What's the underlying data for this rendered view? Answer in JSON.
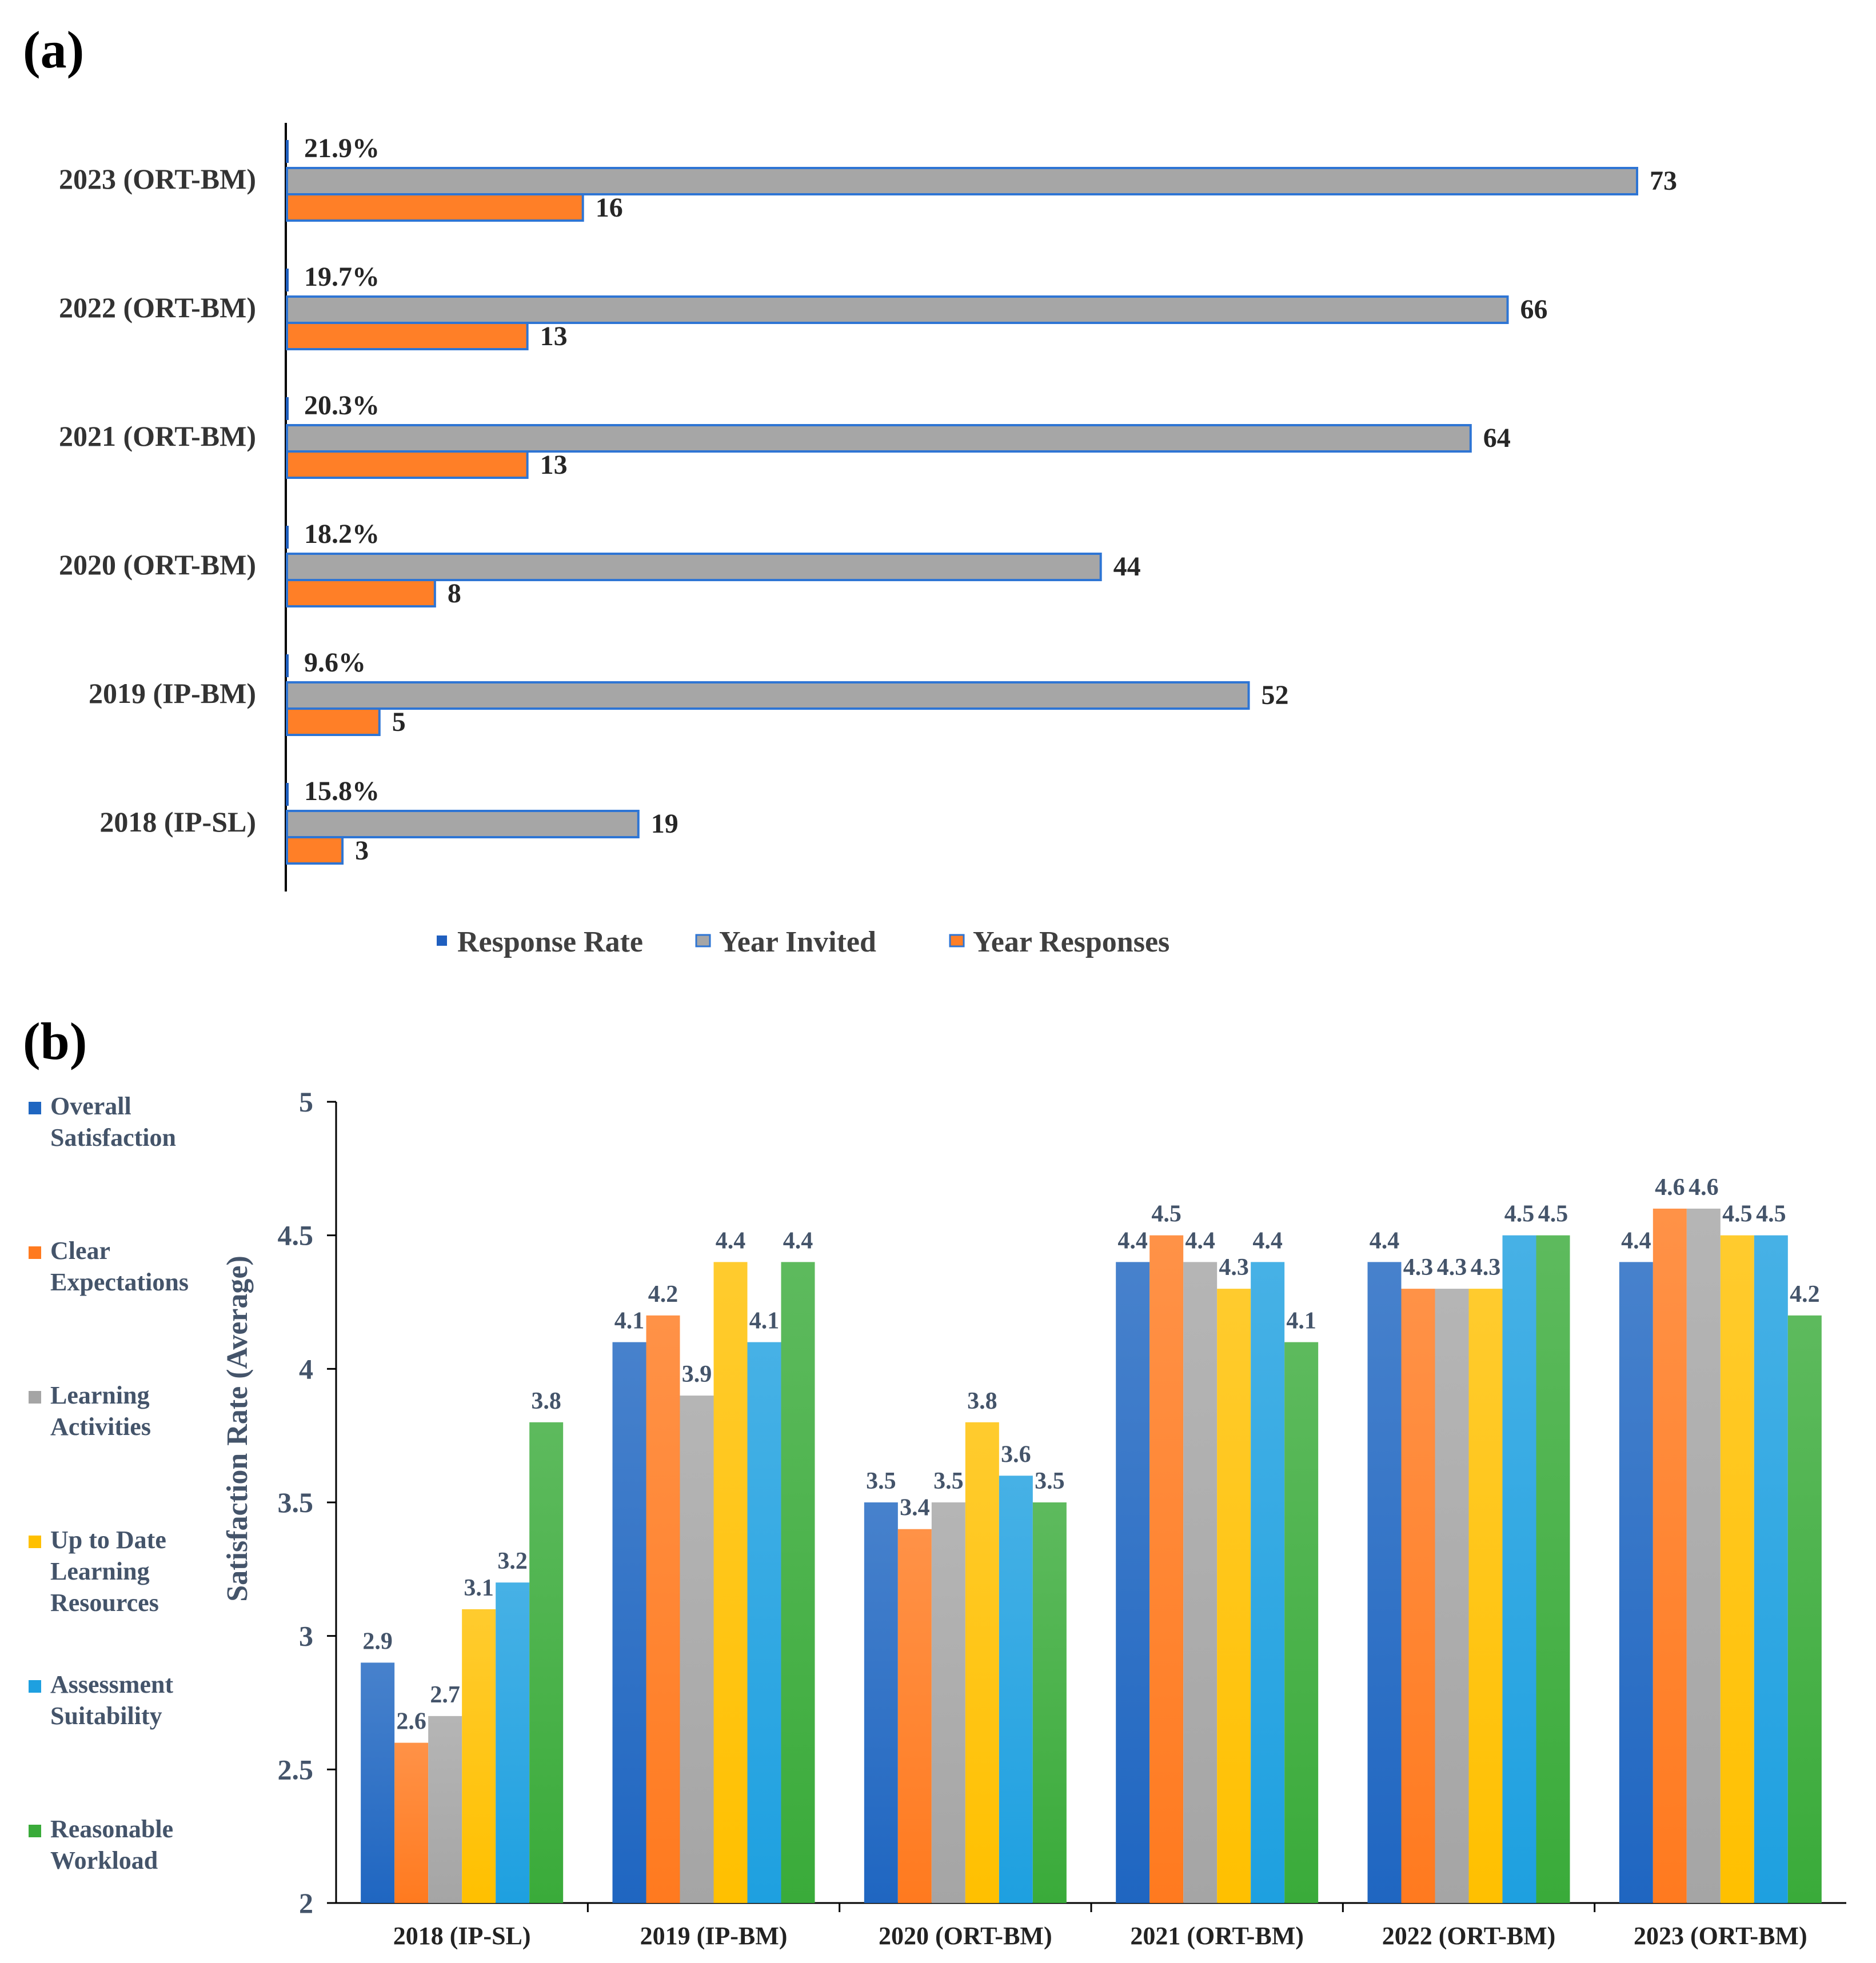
{
  "chart_data": [
    {
      "panel": "(a)",
      "type": "bar",
      "orientation": "horizontal",
      "categories": [
        "2023 (ORT-BM)",
        "2022 (ORT-BM)",
        "2021 (ORT-BM)",
        "2020 (ORT-BM)",
        "2019 (IP-BM)",
        "2018 (IP-SL)"
      ],
      "series": [
        {
          "name": "Response Rate",
          "values": [
            21.9,
            19.7,
            20.3,
            18.2,
            9.6,
            15.8
          ],
          "labels": [
            "21.9%",
            "19.7%",
            "20.3%",
            "18.2%",
            "9.6%",
            "15.8%"
          ],
          "color": "#1f5fbf"
        },
        {
          "name": "Year Invited",
          "values": [
            73,
            66,
            64,
            44,
            52,
            19
          ],
          "labels": [
            "73",
            "66",
            "64",
            "44",
            "52",
            "19"
          ],
          "color": "#a6a6a6",
          "stroke": "#2e75d4"
        },
        {
          "name": "Year Responses",
          "values": [
            16,
            13,
            13,
            8,
            5,
            3
          ],
          "labels": [
            "16",
            "13",
            "13",
            "8",
            "5",
            "3"
          ],
          "color": "#ff7f27",
          "stroke": "#2e75d4"
        }
      ],
      "xlim": [
        0,
        80
      ],
      "legend_position": "bottom"
    },
    {
      "panel": "(b)",
      "type": "bar",
      "categories": [
        "2018 (IP-SL)",
        "2019 (IP-BM)",
        "2020 (ORT-BM)",
        "2021 (ORT-BM)",
        "2022 (ORT-BM)",
        "2023 (ORT-BM)"
      ],
      "series": [
        {
          "name": "Overall Satisfaction",
          "legend_lines": [
            "Overall",
            "Satisfaction"
          ],
          "values": [
            2.9,
            4.1,
            3.5,
            4.4,
            4.4,
            4.4
          ],
          "labels": [
            "2.9",
            "4.1",
            "3.5",
            "4.4",
            "4.4",
            "4.4"
          ],
          "color": "#1f66c1"
        },
        {
          "name": "Clear Expectations",
          "legend_lines": [
            "Clear",
            "Expectations"
          ],
          "values": [
            2.6,
            4.2,
            3.4,
            4.5,
            4.3,
            4.6
          ],
          "labels": [
            "2.6",
            "4.2",
            "3.4",
            "4.5",
            "4.3",
            "4.6"
          ],
          "color": "#ff7a1f"
        },
        {
          "name": "Learning Activities",
          "legend_lines": [
            "Learning",
            "Activities"
          ],
          "values": [
            2.7,
            3.9,
            3.5,
            4.4,
            4.3,
            4.6
          ],
          "labels": [
            "2.7",
            "3.9",
            "3.5",
            "4.4",
            "4.3",
            "4.6"
          ],
          "color": "#a5a5a5"
        },
        {
          "name": "Up to Date Learning Resources",
          "legend_lines": [
            "Up to Date",
            "Learning",
            "Resources"
          ],
          "values": [
            3.1,
            4.4,
            3.8,
            4.3,
            4.3,
            4.5
          ],
          "labels": [
            "3.1",
            "4.4",
            "3.8",
            "4.3",
            "4.3",
            "4.5"
          ],
          "color": "#ffc000"
        },
        {
          "name": "Assessment Suitability",
          "legend_lines": [
            "Assessment",
            "Suitability"
          ],
          "values": [
            3.2,
            4.1,
            3.6,
            4.4,
            4.5,
            4.5
          ],
          "labels": [
            "3.2",
            "4.1",
            "3.6",
            "4.4",
            "4.5",
            "4.5"
          ],
          "color": "#1ea0e0"
        },
        {
          "name": "Reasonable Workload",
          "legend_lines": [
            "Reasonable",
            "Workload"
          ],
          "values": [
            3.8,
            4.4,
            3.5,
            4.1,
            4.5,
            4.2
          ],
          "labels": [
            "3.8",
            "4.4",
            "3.5",
            "4.1",
            "4.5",
            "4.2"
          ],
          "color": "#3aab3a"
        }
      ],
      "ylabel": "Satisfaction Rate (Average)",
      "ylim": [
        2,
        5
      ],
      "yticks": [
        "2",
        "2.5",
        "3",
        "3.5",
        "4",
        "4.5",
        "5"
      ],
      "ytick_values": [
        2,
        2.5,
        3,
        3.5,
        4,
        4.5,
        5
      ],
      "legend_position": "left"
    }
  ]
}
